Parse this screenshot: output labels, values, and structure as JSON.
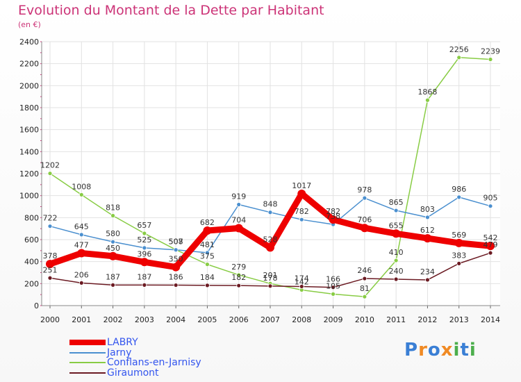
{
  "header": {
    "title": "Evolution du Montant de la Dette par Habitant",
    "subtitle": "(en €)"
  },
  "logo": {
    "text": "Proxiti",
    "letters": [
      {
        "ch": "P",
        "color": "#3a7fd5"
      },
      {
        "ch": "r",
        "color": "#f08a24"
      },
      {
        "ch": "o",
        "color": "#3a7fd5"
      },
      {
        "ch": "x",
        "color": "#f08a24"
      },
      {
        "ch": "i",
        "color": "#4cae4c"
      },
      {
        "ch": "t",
        "color": "#3a7fd5"
      },
      {
        "ch": "i",
        "color": "#4cae4c"
      }
    ]
  },
  "chart_data": {
    "type": "line",
    "title": "Evolution du Montant de la Dette par Habitant",
    "subtitle": "(en €)",
    "xlabel": "",
    "ylabel": "",
    "x": [
      2000,
      2001,
      2002,
      2003,
      2004,
      2005,
      2006,
      2007,
      2008,
      2009,
      2010,
      2011,
      2012,
      2013,
      2014
    ],
    "ylim": [
      0,
      2400
    ],
    "yticks": [
      0,
      200,
      400,
      600,
      800,
      1000,
      1200,
      1400,
      1600,
      1800,
      2000,
      2200,
      2400
    ],
    "grid": true,
    "legend_position": "bottom-left",
    "series": [
      {
        "name": "LABRY",
        "color": "#ee0000",
        "values": [
          378,
          477,
          450,
          396,
          350,
          682,
          704,
          528,
          1017,
          782,
          706,
          655,
          612,
          569,
          542
        ],
        "labels": [
          "378",
          "477",
          "450",
          "396",
          "350",
          "682",
          "704",
          "528",
          "1017",
          "782",
          "706",
          "655",
          "612",
          "569",
          "542"
        ]
      },
      {
        "name": "Jarny",
        "color": "#4a8fcf",
        "values": [
          722,
          645,
          580,
          525,
          507,
          481,
          919,
          848,
          782,
          738,
          978,
          865,
          803,
          986,
          905
        ],
        "labels": [
          "722",
          "645",
          "580",
          "525",
          "507",
          "481",
          "919",
          "848",
          "782",
          "738",
          "978",
          "865",
          "803",
          "986",
          "905"
        ]
      },
      {
        "name": "Conflans-en-Jarnisy",
        "color": "#88cc44",
        "values": [
          1202,
          1008,
          818,
          657,
          508,
          375,
          279,
          201,
          142,
          105,
          81,
          410,
          1868,
          2256,
          2239
        ],
        "labels": [
          "1202",
          "1008",
          "818",
          "657",
          "508",
          "375",
          "279",
          "201",
          "142",
          "105",
          "81",
          "410",
          "1868",
          "2256",
          "2239"
        ]
      },
      {
        "name": "Giraumont",
        "color": "#6b1a22",
        "values": [
          251,
          206,
          187,
          187,
          186,
          184,
          182,
          178,
          174,
          166,
          246,
          240,
          234,
          383,
          479
        ],
        "labels": [
          "251",
          "206",
          "187",
          "187",
          "186",
          "184",
          "182",
          "178",
          "174",
          "166",
          "246",
          "240",
          "234",
          "383",
          "479"
        ]
      }
    ]
  }
}
